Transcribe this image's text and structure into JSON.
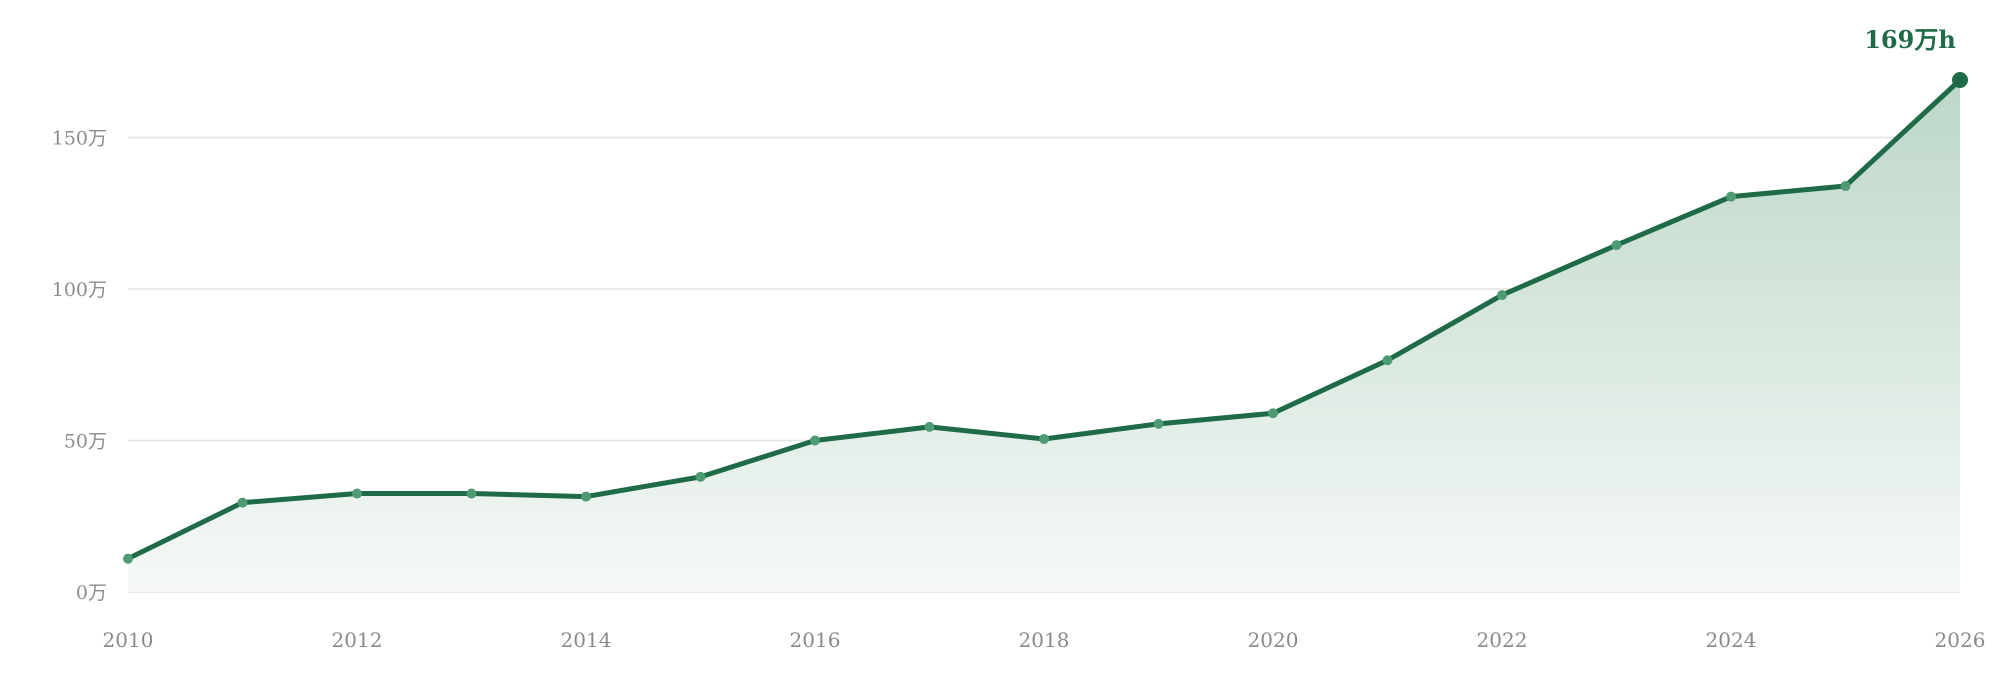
{
  "chart_data": {
    "type": "area",
    "title": "",
    "xlabel": "",
    "ylabel": "",
    "x": [
      2010,
      2011,
      2012,
      2013,
      2014,
      2015,
      2016,
      2017,
      2018,
      2019,
      2020,
      2021,
      2022,
      2023,
      2024,
      2025,
      2026
    ],
    "series": [
      {
        "values": [
          11,
          29.5,
          32.5,
          32.5,
          31.5,
          38,
          50,
          54.5,
          50.5,
          55.5,
          59,
          76.5,
          98,
          114.5,
          130.5,
          134,
          169
        ]
      }
    ],
    "xlim": [
      2010,
      2026
    ],
    "ylim": [
      0,
      169
    ],
    "y_ticks": [
      0,
      50,
      100,
      150
    ],
    "y_tick_labels": [
      "0万",
      "50万",
      "100万",
      "150万"
    ],
    "x_ticks": [
      2010,
      2012,
      2014,
      2016,
      2018,
      2020,
      2022,
      2024,
      2026
    ],
    "x_tick_labels": [
      "2010",
      "2012",
      "2014",
      "2016",
      "2018",
      "2020",
      "2022",
      "2024",
      "2026"
    ],
    "grid": true,
    "legend": "none",
    "annotation": {
      "text": "169万h",
      "x": 2026,
      "y": 169
    },
    "colors": {
      "line": "#1f6b48",
      "point": "#4e9a73",
      "area_top": "#bcd7c8",
      "area_bottom": "#f6f9f7",
      "annotation": "#1f6b48"
    }
  }
}
